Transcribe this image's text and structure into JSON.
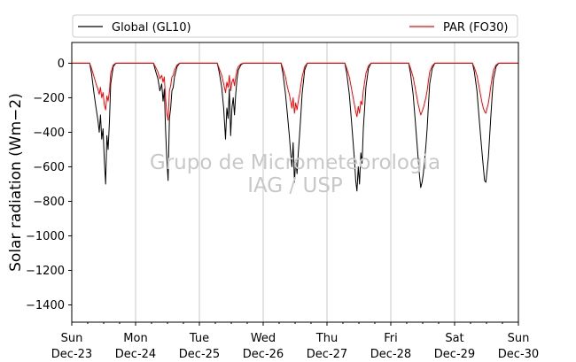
{
  "chart_data": {
    "type": "line",
    "title": "",
    "xlabel": "",
    "ylabel": "Solar radiation (Wm−2)",
    "ylim": [
      -1500,
      120
    ],
    "xlim": [
      0,
      7
    ],
    "x_unit": "days from Sun Dec-23",
    "grid": "vertical",
    "legend_position": "top (above plot)",
    "yticks": [
      0,
      -200,
      -400,
      -600,
      -800,
      -1000,
      -1200,
      -1400
    ],
    "ytick_labels": [
      "0",
      "−200",
      "−400",
      "−600",
      "−800",
      "−1000",
      "−1200",
      "−1400"
    ],
    "xticks": [
      {
        "day": "Sun",
        "date": "Dec-23"
      },
      {
        "day": "Mon",
        "date": "Dec-24"
      },
      {
        "day": "Tue",
        "date": "Dec-25"
      },
      {
        "day": "Wed",
        "date": "Dec-26"
      },
      {
        "day": "Thu",
        "date": "Dec-27"
      },
      {
        "day": "Fri",
        "date": "Dec-28"
      },
      {
        "day": "Sat",
        "date": "Dec-29"
      },
      {
        "day": "Sun",
        "date": "Dec-30"
      }
    ],
    "watermark": [
      "Grupo de Micrometeorologia",
      "IAG / USP"
    ],
    "series": [
      {
        "name": "Global (GL10)",
        "color": "#000000",
        "daily_min": [
          -700,
          -680,
          -440,
          -690,
          -740,
          -720,
          -690
        ],
        "points": [
          {
            "day": 0,
            "x": [
              0.28,
              0.31,
              0.35,
              0.38,
              0.41,
              0.43,
              0.45,
              0.47,
              0.49,
              0.51,
              0.53,
              0.55,
              0.57,
              0.59,
              0.61,
              0.65,
              0.69
            ],
            "y": [
              0,
              -60,
              -180,
              -260,
              -330,
              -400,
              -300,
              -440,
              -380,
              -560,
              -700,
              -420,
              -500,
              -340,
              -120,
              -20,
              0
            ]
          },
          {
            "day": 1,
            "x": [
              0.28,
              0.31,
              0.35,
              0.38,
              0.41,
              0.43,
              0.45,
              0.47,
              0.49,
              0.51,
              0.53,
              0.55,
              0.57,
              0.59,
              0.61,
              0.65,
              0.69
            ],
            "y": [
              0,
              -40,
              -90,
              -160,
              -120,
              -220,
              -150,
              -380,
              -560,
              -680,
              -320,
              -260,
              -160,
              -140,
              -80,
              -20,
              0
            ]
          },
          {
            "day": 2,
            "x": [
              0.28,
              0.31,
              0.35,
              0.38,
              0.41,
              0.43,
              0.45,
              0.47,
              0.49,
              0.51,
              0.53,
              0.55,
              0.57,
              0.59,
              0.61,
              0.65,
              0.69
            ],
            "y": [
              0,
              -50,
              -140,
              -260,
              -440,
              -260,
              -320,
              -150,
              -420,
              -260,
              -200,
              -300,
              -180,
              -90,
              -40,
              -10,
              0
            ]
          },
          {
            "day": 3,
            "x": [
              0.28,
              0.31,
              0.35,
              0.38,
              0.41,
              0.43,
              0.45,
              0.47,
              0.49,
              0.51,
              0.53,
              0.55,
              0.57,
              0.59,
              0.61,
              0.65,
              0.69
            ],
            "y": [
              0,
              -60,
              -180,
              -300,
              -420,
              -520,
              -600,
              -460,
              -690,
              -560,
              -640,
              -520,
              -420,
              -300,
              -180,
              -40,
              0
            ]
          },
          {
            "day": 4,
            "x": [
              0.28,
              0.31,
              0.35,
              0.38,
              0.41,
              0.43,
              0.45,
              0.47,
              0.49,
              0.51,
              0.53,
              0.55,
              0.57,
              0.59,
              0.61,
              0.65,
              0.69
            ],
            "y": [
              0,
              -60,
              -180,
              -320,
              -460,
              -560,
              -680,
              -740,
              -600,
              -700,
              -520,
              -580,
              -380,
              -260,
              -140,
              -30,
              0
            ]
          },
          {
            "day": 5,
            "x": [
              0.28,
              0.31,
              0.35,
              0.38,
              0.41,
              0.43,
              0.45,
              0.47,
              0.49,
              0.51,
              0.53,
              0.55,
              0.57,
              0.59,
              0.61,
              0.65,
              0.69
            ],
            "y": [
              0,
              -60,
              -180,
              -320,
              -460,
              -560,
              -650,
              -720,
              -690,
              -640,
              -560,
              -480,
              -380,
              -240,
              -120,
              -30,
              0
            ]
          },
          {
            "day": 6,
            "x": [
              0.28,
              0.31,
              0.35,
              0.38,
              0.41,
              0.43,
              0.45,
              0.47,
              0.49,
              0.51,
              0.53,
              0.55,
              0.57,
              0.59,
              0.61,
              0.65,
              0.69
            ],
            "y": [
              0,
              -50,
              -160,
              -300,
              -430,
              -520,
              -600,
              -680,
              -690,
              -620,
              -540,
              -420,
              -300,
              -180,
              -90,
              -20,
              0
            ]
          }
        ]
      },
      {
        "name": "PAR (FO30)",
        "color": "#ff0000",
        "daily_min": [
          -270,
          -330,
          -170,
          -290,
          -310,
          -300,
          -290
        ],
        "points": [
          {
            "day": 0,
            "x": [
              0.28,
              0.31,
              0.35,
              0.38,
              0.41,
              0.43,
              0.45,
              0.47,
              0.49,
              0.51,
              0.53,
              0.55,
              0.57,
              0.59,
              0.61,
              0.65,
              0.69
            ],
            "y": [
              0,
              -30,
              -80,
              -120,
              -150,
              -180,
              -140,
              -200,
              -170,
              -240,
              -270,
              -190,
              -220,
              -160,
              -60,
              -10,
              0
            ]
          },
          {
            "day": 1,
            "x": [
              0.28,
              0.31,
              0.35,
              0.38,
              0.41,
              0.43,
              0.45,
              0.47,
              0.49,
              0.51,
              0.53,
              0.55,
              0.57,
              0.59,
              0.61,
              0.65,
              0.69
            ],
            "y": [
              0,
              -20,
              -50,
              -90,
              -70,
              -110,
              -80,
              -200,
              -290,
              -330,
              -160,
              -130,
              -80,
              -70,
              -40,
              -10,
              0
            ]
          },
          {
            "day": 2,
            "x": [
              0.28,
              0.31,
              0.35,
              0.38,
              0.41,
              0.43,
              0.45,
              0.47,
              0.49,
              0.51,
              0.53,
              0.55,
              0.57,
              0.59,
              0.61,
              0.65,
              0.69
            ],
            "y": [
              0,
              -30,
              -70,
              -120,
              -170,
              -110,
              -140,
              -70,
              -160,
              -110,
              -90,
              -130,
              -80,
              -40,
              -20,
              -5,
              0
            ]
          },
          {
            "day": 3,
            "x": [
              0.28,
              0.31,
              0.35,
              0.38,
              0.41,
              0.43,
              0.45,
              0.47,
              0.49,
              0.51,
              0.53,
              0.55,
              0.57,
              0.59,
              0.61,
              0.65,
              0.69
            ],
            "y": [
              0,
              -30,
              -80,
              -140,
              -180,
              -220,
              -260,
              -200,
              -290,
              -230,
              -270,
              -220,
              -180,
              -130,
              -80,
              -20,
              0
            ]
          },
          {
            "day": 4,
            "x": [
              0.28,
              0.31,
              0.35,
              0.38,
              0.41,
              0.43,
              0.45,
              0.47,
              0.49,
              0.51,
              0.53,
              0.55,
              0.57,
              0.59,
              0.61,
              0.65,
              0.69
            ],
            "y": [
              0,
              -30,
              -80,
              -140,
              -200,
              -240,
              -280,
              -310,
              -250,
              -290,
              -220,
              -240,
              -160,
              -110,
              -60,
              -15,
              0
            ]
          },
          {
            "day": 5,
            "x": [
              0.28,
              0.31,
              0.35,
              0.38,
              0.41,
              0.43,
              0.45,
              0.47,
              0.49,
              0.51,
              0.53,
              0.55,
              0.57,
              0.59,
              0.61,
              0.65,
              0.69
            ],
            "y": [
              0,
              -30,
              -80,
              -140,
              -200,
              -240,
              -270,
              -300,
              -280,
              -260,
              -230,
              -200,
              -160,
              -100,
              -50,
              -15,
              0
            ]
          },
          {
            "day": 6,
            "x": [
              0.28,
              0.31,
              0.35,
              0.38,
              0.41,
              0.43,
              0.45,
              0.47,
              0.49,
              0.51,
              0.53,
              0.55,
              0.57,
              0.59,
              0.61,
              0.65,
              0.69
            ],
            "y": [
              0,
              -25,
              -70,
              -130,
              -190,
              -230,
              -260,
              -280,
              -290,
              -260,
              -230,
              -180,
              -130,
              -80,
              -40,
              -10,
              0
            ]
          }
        ]
      }
    ]
  }
}
